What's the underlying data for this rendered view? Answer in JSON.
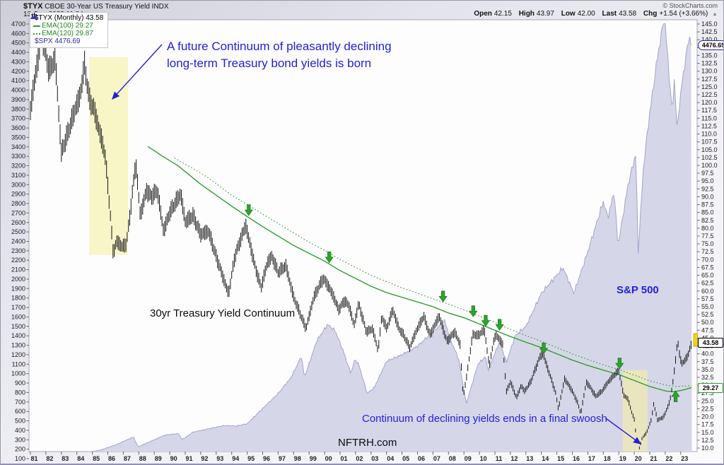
{
  "header": {
    "symbol": "$TYX",
    "title": "CBOE 30-Year US Treasury Yield INDX",
    "datetime": "13-Sep-2023 11:34am",
    "copyright": "© StockCharts.com",
    "quote": {
      "open_label": "Open",
      "open_value": "42.15",
      "high_label": "High",
      "high_value": "43.97",
      "low_label": "Low",
      "low_value": "42.00",
      "last_label": "Last",
      "last_value": "43.58",
      "chg_label": "Chg",
      "chg_value": "+1.54 (+3.66%)"
    },
    "icons": {
      "chg_up": "▲"
    }
  },
  "legend": {
    "tyx": "$TYX (Monthly) 43.58",
    "ema100": "EMA(100) 29.27",
    "ema120": "EMA(120) 29.87",
    "spx": "$SPX 4476.69"
  },
  "annotations": {
    "born_line1": "A future Continuum of pleasantly declining",
    "born_line2": "long-term Treasury bond yields is born",
    "swoosh": "Continuum of declining yields ends in a final swoosh",
    "continuum": "30yr Treasury Yield Continuum",
    "spx": "S&P 500",
    "watermark": "NFTRH.com"
  },
  "callouts": {
    "spx": "4476.69",
    "tyx": "43.58",
    "ema": "29.27"
  },
  "colors": {
    "annotation_blue": "#2121dd",
    "ema_green": "#2f9e2f",
    "arrow_green": "#2da32d",
    "arrow_green_edge": "#137013",
    "spx_fill": "#d6d6e9",
    "spx_line": "#a3a3cc",
    "highlight_yellow": "#f5f0a4",
    "bar_black": "#151515",
    "last_bar_yellow": "#efd510"
  },
  "chart_data": {
    "type": "mixed",
    "title": "$TYX CBOE 30-Year US Treasury Yield INDX (Monthly) with $SPX area overlay",
    "x_axis": {
      "start_year": 1981,
      "end_year": 2023,
      "tick_labels": [
        "81",
        "82",
        "83",
        "84",
        "85",
        "86",
        "87",
        "88",
        "89",
        "90",
        "91",
        "92",
        "93",
        "94",
        "95",
        "96",
        "97",
        "98",
        "99",
        "00",
        "01",
        "02",
        "03",
        "04",
        "05",
        "06",
        "07",
        "08",
        "09",
        "10",
        "11",
        "12",
        "13",
        "14",
        "15",
        "16",
        "17",
        "18",
        "19",
        "20",
        "21",
        "22",
        "23"
      ]
    },
    "right_axis": {
      "series": "$TYX",
      "min": 10.0,
      "max": 145.0,
      "step": 2.5
    },
    "left_axis": {
      "series": "$SPX",
      "min": 100,
      "max": 4700,
      "step": 100
    },
    "series": [
      {
        "name": "$TYX",
        "type": "ohlc_bars",
        "color": "#151515",
        "last": 43.58,
        "keypoints": [
          [
            1981.0,
            118
          ],
          [
            1981.3,
            128
          ],
          [
            1981.75,
            142
          ],
          [
            1982.2,
            130
          ],
          [
            1982.6,
            134
          ],
          [
            1983.0,
            104
          ],
          [
            1983.4,
            110
          ],
          [
            1983.9,
            118
          ],
          [
            1984.2,
            122
          ],
          [
            1984.5,
            132
          ],
          [
            1984.8,
            121
          ],
          [
            1985.1,
            118
          ],
          [
            1985.4,
            112
          ],
          [
            1985.8,
            104
          ],
          [
            1986.0,
            94
          ],
          [
            1986.35,
            72
          ],
          [
            1986.6,
            76
          ],
          [
            1986.9,
            74
          ],
          [
            1987.2,
            75
          ],
          [
            1987.45,
            85
          ],
          [
            1987.8,
            101
          ],
          [
            1988.1,
            84
          ],
          [
            1988.5,
            92
          ],
          [
            1988.8,
            90
          ],
          [
            1989.2,
            92
          ],
          [
            1989.6,
            79
          ],
          [
            1990.0,
            85
          ],
          [
            1990.7,
            91
          ],
          [
            1991.0,
            82
          ],
          [
            1991.5,
            84
          ],
          [
            1992.0,
            78
          ],
          [
            1992.5,
            79
          ],
          [
            1993.0,
            71
          ],
          [
            1993.8,
            59
          ],
          [
            1994.2,
            71
          ],
          [
            1994.9,
            81
          ],
          [
            1995.5,
            68
          ],
          [
            1995.9,
            61
          ],
          [
            1996.3,
            69
          ],
          [
            1996.6,
            71
          ],
          [
            1997.0,
            66
          ],
          [
            1997.5,
            68
          ],
          [
            1998.0,
            58
          ],
          [
            1998.8,
            48
          ],
          [
            1999.3,
            58
          ],
          [
            1999.9,
            64
          ],
          [
            2000.2,
            62
          ],
          [
            2000.6,
            58
          ],
          [
            2000.9,
            54
          ],
          [
            2001.3,
            57
          ],
          [
            2001.6,
            55
          ],
          [
            2001.9,
            49
          ],
          [
            2002.2,
            56
          ],
          [
            2002.7,
            47
          ],
          [
            2003.1,
            48
          ],
          [
            2003.45,
            41
          ],
          [
            2003.7,
            52
          ],
          [
            2004.0,
            48
          ],
          [
            2004.4,
            54
          ],
          [
            2004.8,
            48
          ],
          [
            2005.1,
            46
          ],
          [
            2005.5,
            42
          ],
          [
            2005.9,
            47
          ],
          [
            2006.4,
            52
          ],
          [
            2006.8,
            46
          ],
          [
            2007.4,
            52
          ],
          [
            2007.9,
            44
          ],
          [
            2008.4,
            47
          ],
          [
            2008.75,
            43
          ],
          [
            2008.95,
            26
          ],
          [
            2009.3,
            37
          ],
          [
            2009.55,
            46
          ],
          [
            2010.0,
            46
          ],
          [
            2010.3,
            48
          ],
          [
            2010.65,
            36
          ],
          [
            2010.9,
            44
          ],
          [
            2011.1,
            46
          ],
          [
            2011.5,
            43
          ],
          [
            2011.75,
            28
          ],
          [
            2012.0,
            31
          ],
          [
            2012.4,
            26
          ],
          [
            2012.7,
            30
          ],
          [
            2012.9,
            28
          ],
          [
            2013.3,
            31
          ],
          [
            2013.9,
            39
          ],
          [
            2014.1,
            40
          ],
          [
            2014.5,
            34
          ],
          [
            2014.9,
            28
          ],
          [
            2015.1,
            22.5
          ],
          [
            2015.5,
            32
          ],
          [
            2015.9,
            29
          ],
          [
            2016.3,
            25
          ],
          [
            2016.55,
            21
          ],
          [
            2016.9,
            31
          ],
          [
            2017.2,
            29
          ],
          [
            2017.5,
            26.5
          ],
          [
            2017.9,
            28
          ],
          [
            2018.3,
            31
          ],
          [
            2018.75,
            33.5
          ],
          [
            2019.0,
            34.6
          ],
          [
            2019.3,
            27
          ],
          [
            2019.6,
            25.5
          ],
          [
            2019.8,
            22
          ],
          [
            2020.0,
            19
          ],
          [
            2020.15,
            13
          ],
          [
            2020.25,
            8.5
          ],
          [
            2020.5,
            13
          ],
          [
            2020.8,
            15
          ],
          [
            2021.1,
            19
          ],
          [
            2021.25,
            24
          ],
          [
            2021.5,
            19
          ],
          [
            2021.8,
            19.5
          ],
          [
            2022.0,
            21
          ],
          [
            2022.3,
            25
          ],
          [
            2022.5,
            31
          ],
          [
            2022.8,
            44
          ],
          [
            2022.95,
            39
          ],
          [
            2023.1,
            36.5
          ],
          [
            2023.3,
            38.5
          ],
          [
            2023.45,
            39
          ],
          [
            2023.6,
            42
          ],
          [
            2023.72,
            43.6
          ]
        ]
      },
      {
        "name": "EMA(100)",
        "type": "line",
        "style": "solid",
        "color": "#2f9e2f",
        "last": 29.27,
        "keypoints": [
          [
            1988.6,
            106
          ],
          [
            1989.5,
            103
          ],
          [
            1990.5,
            100
          ],
          [
            1992,
            94
          ],
          [
            1993,
            90.5
          ],
          [
            1994,
            87
          ],
          [
            1995,
            83.7
          ],
          [
            1996,
            80.5
          ],
          [
            1997,
            77.5
          ],
          [
            1998,
            74.5
          ],
          [
            1999,
            72
          ],
          [
            2000,
            69.5
          ],
          [
            2001,
            66.5
          ],
          [
            2002,
            64
          ],
          [
            2003,
            61.5
          ],
          [
            2004,
            59.5
          ],
          [
            2005,
            58
          ],
          [
            2006,
            56.5
          ],
          [
            2007,
            55
          ],
          [
            2008,
            53
          ],
          [
            2009,
            51.5
          ],
          [
            2010,
            49.5
          ],
          [
            2011,
            47.5
          ],
          [
            2012,
            45.5
          ],
          [
            2013,
            43.7
          ],
          [
            2014,
            42
          ],
          [
            2015,
            40
          ],
          [
            2016,
            38
          ],
          [
            2017,
            36.3
          ],
          [
            2018,
            34.8
          ],
          [
            2019,
            33.4
          ],
          [
            2020,
            31.5
          ],
          [
            2021,
            29.6
          ],
          [
            2022,
            28.2
          ],
          [
            2022.5,
            27.9
          ],
          [
            2023.1,
            28.4
          ],
          [
            2023.72,
            29.27
          ]
        ]
      },
      {
        "name": "EMA(120)",
        "type": "line",
        "style": "dotted",
        "color": "#2f9e2f",
        "last": 29.87,
        "keypoints": [
          [
            1990.3,
            102.3
          ],
          [
            1991.5,
            99
          ],
          [
            1992.5,
            96
          ],
          [
            1994,
            90.5
          ],
          [
            1995,
            87.5
          ],
          [
            1996,
            84.5
          ],
          [
            1997,
            81.5
          ],
          [
            1998,
            78.5
          ],
          [
            1999,
            75.5
          ],
          [
            2000,
            73
          ],
          [
            2001,
            70
          ],
          [
            2002,
            67.5
          ],
          [
            2003,
            65
          ],
          [
            2004,
            63
          ],
          [
            2005,
            61
          ],
          [
            2006,
            59.3
          ],
          [
            2007,
            57.5
          ],
          [
            2008,
            55.8
          ],
          [
            2009,
            54
          ],
          [
            2010,
            52
          ],
          [
            2011,
            50
          ],
          [
            2012,
            47.8
          ],
          [
            2013,
            45.8
          ],
          [
            2014,
            44
          ],
          [
            2015,
            42
          ],
          [
            2016,
            40
          ],
          [
            2017,
            38.2
          ],
          [
            2018,
            36.5
          ],
          [
            2019,
            35
          ],
          [
            2020,
            33.2
          ],
          [
            2021,
            31.4
          ],
          [
            2022,
            30.1
          ],
          [
            2022.7,
            29.6
          ],
          [
            2023.72,
            29.87
          ]
        ]
      },
      {
        "name": "$SPX",
        "type": "area",
        "color": "#a3a3cc",
        "fill": "#d6d6e9",
        "last": 4476.69,
        "keypoints": [
          [
            1981.0,
            132
          ],
          [
            1982.6,
            108
          ],
          [
            1983.5,
            165
          ],
          [
            1984.5,
            160
          ],
          [
            1985.5,
            190
          ],
          [
            1986.5,
            245
          ],
          [
            1987.65,
            330
          ],
          [
            1987.95,
            225
          ],
          [
            1988.5,
            265
          ],
          [
            1989.7,
            350
          ],
          [
            1990.55,
            365
          ],
          [
            1990.8,
            300
          ],
          [
            1991.5,
            380
          ],
          [
            1992.5,
            415
          ],
          [
            1993.5,
            450
          ],
          [
            1994.3,
            445
          ],
          [
            1995.0,
            470
          ],
          [
            1996.0,
            630
          ],
          [
            1997.0,
            790
          ],
          [
            1997.8,
            950
          ],
          [
            1998.5,
            1180
          ],
          [
            1998.7,
            960
          ],
          [
            1999.5,
            1350
          ],
          [
            2000.2,
            1520
          ],
          [
            2000.7,
            1450
          ],
          [
            2001.2,
            1240
          ],
          [
            2001.7,
            1000
          ],
          [
            2001.95,
            1150
          ],
          [
            2002.2,
            1100
          ],
          [
            2002.75,
            790
          ],
          [
            2003.2,
            850
          ],
          [
            2004.0,
            1130
          ],
          [
            2005.0,
            1200
          ],
          [
            2006.0,
            1290
          ],
          [
            2007.0,
            1440
          ],
          [
            2007.75,
            1560
          ],
          [
            2008.2,
            1330
          ],
          [
            2008.65,
            1160
          ],
          [
            2009.15,
            680
          ],
          [
            2009.9,
            1100
          ],
          [
            2010.4,
            1180
          ],
          [
            2010.55,
            1030
          ],
          [
            2011.3,
            1340
          ],
          [
            2011.75,
            1120
          ],
          [
            2012.3,
            1400
          ],
          [
            2013.0,
            1500
          ],
          [
            2014.0,
            1850
          ],
          [
            2015.4,
            2120
          ],
          [
            2016.1,
            1850
          ],
          [
            2016.9,
            2240
          ],
          [
            2018.0,
            2820
          ],
          [
            2018.3,
            2650
          ],
          [
            2018.7,
            2930
          ],
          [
            2018.95,
            2350
          ],
          [
            2019.6,
            3000
          ],
          [
            2020.1,
            3330
          ],
          [
            2020.25,
            2280
          ],
          [
            2020.6,
            3200
          ],
          [
            2021.0,
            3760
          ],
          [
            2021.5,
            4350
          ],
          [
            2021.95,
            4780
          ],
          [
            2022.45,
            3750
          ],
          [
            2022.6,
            4150
          ],
          [
            2022.75,
            3590
          ],
          [
            2023.1,
            4100
          ],
          [
            2023.55,
            4580
          ],
          [
            2023.7,
            4476.69
          ]
        ]
      }
    ],
    "ema_touch_arrows": {
      "down": [
        [
          1995.1,
          84
        ],
        [
          2000.3,
          69
        ],
        [
          2007.65,
          56.5
        ],
        [
          2009.6,
          51.8
        ],
        [
          2010.4,
          48.8
        ],
        [
          2011.3,
          47.5
        ],
        [
          2014.15,
          40
        ],
        [
          2019.05,
          35.2
        ]
      ],
      "up": [
        [
          2022.67,
          28.2
        ]
      ]
    },
    "highlights": [
      {
        "x1": 1984.8,
        "x2": 1987.3,
        "v1": 71.5,
        "v2": 134.5
      },
      {
        "x1": 2019.25,
        "x2": 2020.85,
        "v1": 9.0,
        "v2": 34.8
      }
    ]
  }
}
